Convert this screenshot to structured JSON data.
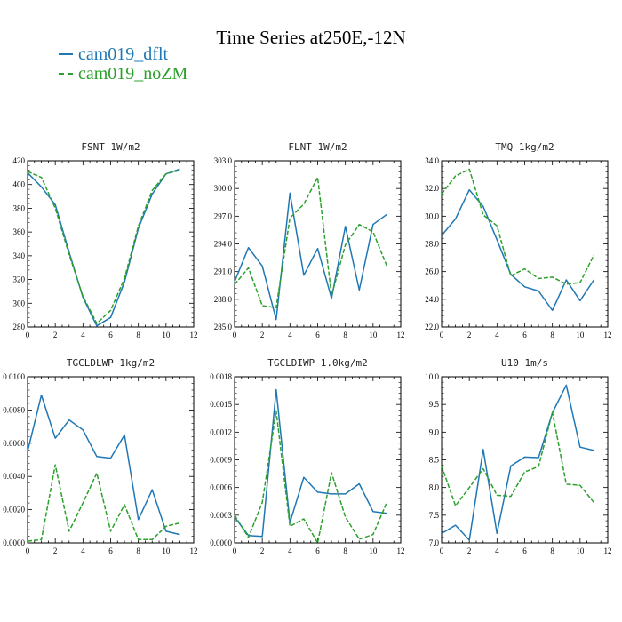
{
  "title": "Time Series at250E,-12N",
  "legend": [
    {
      "name": "cam019_dflt",
      "color": "#1f77b4",
      "dash": "solid"
    },
    {
      "name": "cam019_noZM",
      "color": "#2ca02c",
      "dash": "dashed"
    }
  ],
  "chart_data": [
    {
      "type": "line",
      "title": "FSNT   1W/m2",
      "x": [
        0,
        1,
        2,
        3,
        4,
        5,
        6,
        7,
        8,
        9,
        10,
        11
      ],
      "xlim": [
        0,
        12
      ],
      "xticks": [
        0,
        2,
        4,
        6,
        8,
        10,
        12
      ],
      "ylim": [
        280,
        420
      ],
      "yticks": [
        280,
        300,
        320,
        340,
        360,
        380,
        400,
        420
      ],
      "ytick_labels": [
        "280",
        "300",
        "320",
        "340",
        "360",
        "380",
        "400",
        "420"
      ],
      "series": [
        {
          "name": "cam019_dflt",
          "values": [
            410,
            398,
            383,
            343,
            305,
            281,
            288,
            318,
            363,
            392,
            409,
            413
          ]
        },
        {
          "name": "cam019_noZM",
          "values": [
            411,
            406,
            380,
            341,
            306,
            283,
            294,
            321,
            365,
            395,
            409,
            412
          ]
        }
      ]
    },
    {
      "type": "line",
      "title": "FLNT   1W/m2",
      "x": [
        0,
        1,
        2,
        3,
        4,
        5,
        6,
        7,
        8,
        9,
        10,
        11
      ],
      "xlim": [
        0,
        12
      ],
      "xticks": [
        0,
        2,
        4,
        6,
        8,
        10,
        12
      ],
      "ylim": [
        285,
        303
      ],
      "yticks": [
        285,
        288,
        291,
        294,
        297,
        300,
        303
      ],
      "ytick_labels": [
        "285.0",
        "288.0",
        "291.0",
        "294.0",
        "297.0",
        "300.0",
        "303.0"
      ],
      "series": [
        {
          "name": "cam019_dflt",
          "values": [
            289.9,
            293.6,
            291.6,
            285.8,
            299.5,
            290.6,
            293.5,
            288.1,
            295.9,
            289.0,
            296.1,
            297.2
          ]
        },
        {
          "name": "cam019_noZM",
          "values": [
            289.6,
            291.4,
            287.3,
            287.1,
            296.8,
            298.3,
            301.2,
            288.4,
            293.9,
            296.1,
            295.3,
            291.6
          ]
        }
      ]
    },
    {
      "type": "line",
      "title": "TMQ   1kg/m2",
      "x": [
        0,
        1,
        2,
        3,
        4,
        5,
        6,
        7,
        8,
        9,
        10,
        11
      ],
      "xlim": [
        0,
        12
      ],
      "xticks": [
        0,
        2,
        4,
        6,
        8,
        10,
        12
      ],
      "ylim": [
        22,
        34
      ],
      "yticks": [
        22,
        24,
        26,
        28,
        30,
        32,
        34
      ],
      "ytick_labels": [
        "22.0",
        "24.0",
        "26.0",
        "28.0",
        "30.0",
        "32.0",
        "34.0"
      ],
      "series": [
        {
          "name": "cam019_dflt",
          "values": [
            28.6,
            29.8,
            31.9,
            30.7,
            28.3,
            25.8,
            24.9,
            24.6,
            23.2,
            25.4,
            23.9,
            25.4
          ]
        },
        {
          "name": "cam019_noZM",
          "values": [
            31.6,
            32.9,
            33.4,
            30.1,
            29.3,
            25.7,
            26.2,
            25.5,
            25.6,
            25.1,
            25.2,
            27.2
          ]
        }
      ]
    },
    {
      "type": "line",
      "title": "TGCLDLWP   1kg/m2",
      "x": [
        0,
        1,
        2,
        3,
        4,
        5,
        6,
        7,
        8,
        9,
        10,
        11
      ],
      "xlim": [
        0,
        12
      ],
      "xticks": [
        0,
        2,
        4,
        6,
        8,
        10,
        12
      ],
      "ylim": [
        0,
        0.01
      ],
      "yticks": [
        0,
        0.002,
        0.004,
        0.006,
        0.008,
        0.01
      ],
      "ytick_labels": [
        "0.0000",
        "0.0020",
        "0.0040",
        "0.0060",
        "0.0080",
        "0.0100"
      ],
      "series": [
        {
          "name": "cam019_dflt",
          "values": [
            0.0055,
            0.0089,
            0.0063,
            0.0074,
            0.0068,
            0.0052,
            0.0051,
            0.0065,
            0.0014,
            0.0032,
            0.0007,
            0.0005
          ]
        },
        {
          "name": "cam019_noZM",
          "values": [
            0.0001,
            0.0002,
            0.0047,
            0.0007,
            0.0024,
            0.0042,
            0.0007,
            0.0023,
            0.0002,
            0.0002,
            0.001,
            0.0012
          ]
        }
      ]
    },
    {
      "type": "line",
      "title": "TGCLDIWP   1.0kg/m2",
      "x": [
        0,
        1,
        2,
        3,
        4,
        5,
        6,
        7,
        8,
        9,
        10,
        11
      ],
      "xlim": [
        0,
        12
      ],
      "xticks": [
        0,
        2,
        4,
        6,
        8,
        10,
        12
      ],
      "ylim": [
        0,
        0.0018
      ],
      "yticks": [
        0,
        0.0003,
        0.0006,
        0.0009,
        0.0012,
        0.0015,
        0.0018
      ],
      "ytick_labels": [
        "0.0000",
        "0.0003",
        "0.0006",
        "0.0009",
        "0.0012",
        "0.0015",
        "0.0018"
      ],
      "series": [
        {
          "name": "cam019_dflt",
          "values": [
            0.00028,
            8e-05,
            7e-05,
            0.00166,
            0.00022,
            0.00071,
            0.00055,
            0.00053,
            0.00053,
            0.00064,
            0.00034,
            0.00032
          ]
        },
        {
          "name": "cam019_noZM",
          "values": [
            0.0003,
            6e-05,
            0.00044,
            0.00143,
            0.00018,
            0.00026,
            0.0,
            0.00076,
            0.00028,
            4e-05,
            9e-05,
            0.00044
          ]
        }
      ]
    },
    {
      "type": "line",
      "title": "U10   1m/s",
      "x": [
        0,
        1,
        2,
        3,
        4,
        5,
        6,
        7,
        8,
        9,
        10,
        11
      ],
      "xlim": [
        0,
        12
      ],
      "xticks": [
        0,
        2,
        4,
        6,
        8,
        10,
        12
      ],
      "ylim": [
        7,
        10
      ],
      "yticks": [
        7,
        7.5,
        8,
        8.5,
        9,
        9.5,
        10
      ],
      "ytick_labels": [
        "7.0",
        "7.5",
        "8.0",
        "8.5",
        "9.0",
        "9.5",
        "10.0"
      ],
      "series": [
        {
          "name": "cam019_dflt",
          "values": [
            7.17,
            7.32,
            7.05,
            8.69,
            7.17,
            8.39,
            8.55,
            8.54,
            9.35,
            9.85,
            8.73,
            8.67
          ]
        },
        {
          "name": "cam019_noZM",
          "values": [
            8.39,
            7.67,
            8.0,
            8.34,
            7.86,
            7.84,
            8.28,
            8.38,
            9.36,
            8.06,
            8.04,
            7.73
          ]
        }
      ]
    }
  ]
}
